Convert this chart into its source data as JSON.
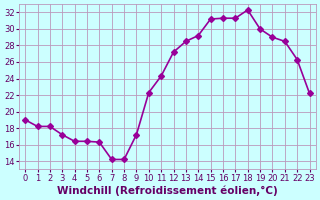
{
  "x": [
    0,
    1,
    2,
    3,
    4,
    5,
    6,
    7,
    8,
    9,
    10,
    11,
    12,
    13,
    14,
    15,
    16,
    17,
    18,
    19,
    20,
    21,
    22,
    23
  ],
  "y": [
    19.0,
    18.2,
    18.2,
    17.2,
    16.4,
    16.4,
    16.3,
    14.2,
    14.2,
    17.2,
    22.3,
    24.3,
    27.2,
    28.5,
    29.2,
    31.2,
    31.3,
    31.3,
    32.3,
    30.0,
    29.0,
    28.5,
    26.3,
    22.2
  ],
  "line_color": "#990099",
  "marker": "D",
  "markersize": 3,
  "linewidth": 1.2,
  "xlabel": "Windchill (Refroidissement éolien,°C)",
  "xlabel_fontsize": 7.5,
  "xlabel_color": "#660066",
  "bg_color": "#ccffff",
  "grid_color": "#bb99bb",
  "tick_color": "#660066",
  "ylim": [
    13,
    33
  ],
  "yticks": [
    14,
    16,
    18,
    20,
    22,
    24,
    26,
    28,
    30,
    32
  ],
  "xticks": [
    0,
    1,
    2,
    3,
    4,
    5,
    6,
    7,
    8,
    9,
    10,
    11,
    12,
    13,
    14,
    15,
    16,
    17,
    18,
    19,
    20,
    21,
    22,
    23
  ],
  "tick_fontsize": 6
}
